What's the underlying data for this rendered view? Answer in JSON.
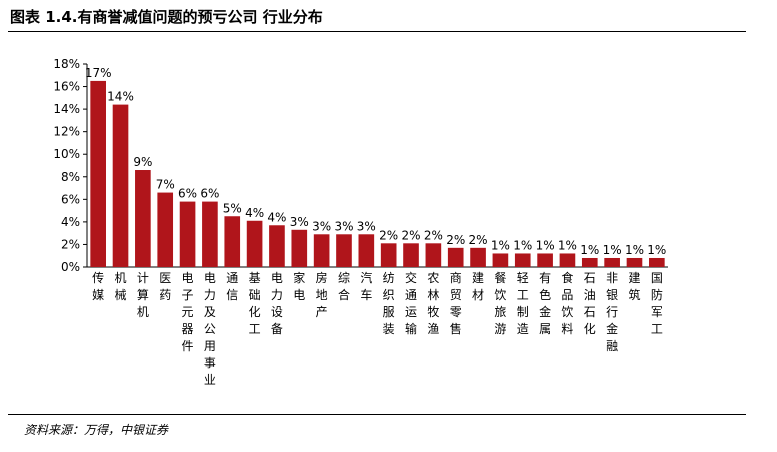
{
  "title": "图表 1.4.有商誉减值问题的预亏公司 行业分布",
  "source": "资料来源：万得，中银证券",
  "colors": {
    "bar": "#B0151B",
    "axis": "#000000"
  },
  "chart_data": {
    "type": "bar",
    "title": "",
    "xlabel": "",
    "ylabel": "",
    "ylim": [
      0,
      18
    ],
    "y_ticks": [
      "0%",
      "2%",
      "4%",
      "6%",
      "8%",
      "10%",
      "12%",
      "14%",
      "16%",
      "18%"
    ],
    "grid": false,
    "categories": [
      "传媒",
      "机械",
      "计算机",
      "医药",
      "电子元器件",
      "电力及公用事业",
      "通信",
      "基础化工",
      "电力设备",
      "家电",
      "房地产",
      "综合",
      "汽车",
      "纺织服装",
      "交通运输",
      "农林牧渔",
      "商贸零售",
      "建材",
      "餐饮旅游",
      "轻工制造",
      "有色金属",
      "食品饮料",
      "石油石化",
      "非银行金融",
      "建筑",
      "国防军工"
    ],
    "values": [
      16.5,
      14.4,
      8.6,
      6.6,
      5.8,
      5.8,
      4.5,
      4.1,
      3.7,
      3.3,
      2.9,
      2.9,
      2.9,
      2.1,
      2.1,
      2.1,
      1.7,
      1.7,
      1.2,
      1.2,
      1.2,
      1.2,
      0.8,
      0.8,
      0.8,
      0.8
    ],
    "labels": [
      "17%",
      "14%",
      "9%",
      "7%",
      "6%",
      "6%",
      "5%",
      "4%",
      "4%",
      "3%",
      "3%",
      "3%",
      "3%",
      "2%",
      "2%",
      "2%",
      "2%",
      "2%",
      "1%",
      "1%",
      "1%",
      "1%",
      "1%",
      "1%",
      "1%",
      "1%"
    ]
  }
}
